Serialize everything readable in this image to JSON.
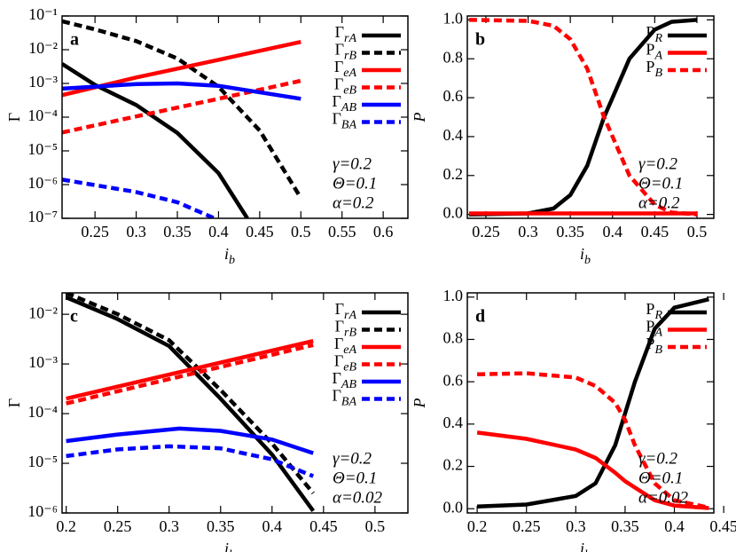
{
  "chart_data": [
    {
      "type": "line",
      "label": "a",
      "xlabel": "ib",
      "ylabel": "Γ",
      "log_y": true,
      "legend": "upper right",
      "xlim": [
        0.21,
        0.63
      ],
      "xticks": [
        0.25,
        0.3,
        0.35,
        0.4,
        0.45,
        0.5,
        0.55,
        0.6
      ],
      "ylim": [
        1e-07,
        0.1
      ],
      "yticks": [
        {
          "value": 1e-07,
          "label": "10⁻⁷"
        },
        {
          "value": 1e-06,
          "label": "10⁻⁶"
        },
        {
          "value": 1e-05,
          "label": "10⁻⁵"
        },
        {
          "value": 0.0001,
          "label": "10⁻⁴"
        },
        {
          "value": 0.001,
          "label": "10⁻³"
        },
        {
          "value": 0.01,
          "label": "10⁻²"
        },
        {
          "value": 0.1,
          "label": "10⁻¹"
        }
      ],
      "annotations": [
        "γ=0.2",
        "Θ=0.1",
        "α=0.2"
      ],
      "series": [
        {
          "name": "ΓrA",
          "color": "#000000",
          "dashed": false,
          "x": [
            0.21,
            0.25,
            0.3,
            0.35,
            0.4,
            0.435
          ],
          "values": [
            0.0038,
            0.0009,
            0.00023,
            3.4e-05,
            2.2e-06,
            1e-07
          ]
        },
        {
          "name": "ΓrB",
          "color": "#000000",
          "dashed": true,
          "x": [
            0.21,
            0.25,
            0.3,
            0.35,
            0.4,
            0.45,
            0.5
          ],
          "values": [
            0.07,
            0.04,
            0.018,
            0.0055,
            0.0008,
            4e-05,
            4e-07
          ]
        },
        {
          "name": "ΓeA",
          "color": "#ff0000",
          "dashed": false,
          "x": [
            0.21,
            0.3,
            0.4,
            0.5
          ],
          "values": [
            0.00045,
            0.0015,
            0.005,
            0.017
          ]
        },
        {
          "name": "ΓeB",
          "color": "#ff0000",
          "dashed": true,
          "x": [
            0.21,
            0.3,
            0.4,
            0.5
          ],
          "values": [
            3.5e-05,
            0.000105,
            0.00035,
            0.0012
          ]
        },
        {
          "name": "ΓAB",
          "color": "#0000ff",
          "dashed": false,
          "x": [
            0.21,
            0.3,
            0.35,
            0.4,
            0.5
          ],
          "values": [
            0.0007,
            0.00095,
            0.001,
            0.00085,
            0.00035
          ]
        },
        {
          "name": "ΓBA",
          "color": "#0000ff",
          "dashed": true,
          "x": [
            0.21,
            0.3,
            0.35,
            0.395
          ],
          "values": [
            1.4e-06,
            6e-07,
            3e-07,
            1e-07
          ]
        }
      ]
    },
    {
      "type": "line",
      "label": "b",
      "xlabel": "ib",
      "ylabel": "P",
      "log_y": false,
      "legend": "upper right",
      "xlim": [
        0.228,
        0.52
      ],
      "xticks": [
        0.25,
        0.3,
        0.35,
        0.4,
        0.45,
        0.5
      ],
      "ylim": [
        -0.02,
        1.02
      ],
      "yticks": [
        {
          "value": 0,
          "label": "0.0"
        },
        {
          "value": 0.2,
          "label": "0.2"
        },
        {
          "value": 0.4,
          "label": "0.4"
        },
        {
          "value": 0.6,
          "label": "0.6"
        },
        {
          "value": 0.8,
          "label": "0.8"
        },
        {
          "value": 1,
          "label": "1.0"
        }
      ],
      "annotations": [
        "γ=0.2",
        "Θ=0.1",
        "α=0.2"
      ],
      "series": [
        {
          "name": "PR",
          "color": "#000000",
          "dashed": false,
          "x": [
            0.23,
            0.3,
            0.33,
            0.35,
            0.37,
            0.39,
            0.4,
            0.42,
            0.45,
            0.47,
            0.5
          ],
          "values": [
            0,
            0.005,
            0.03,
            0.1,
            0.25,
            0.5,
            0.6,
            0.8,
            0.95,
            0.99,
            1.0
          ]
        },
        {
          "name": "PA",
          "color": "#ff0000",
          "dashed": false,
          "x": [
            0.23,
            0.5
          ],
          "values": [
            0.005,
            0.005
          ]
        },
        {
          "name": "PB",
          "color": "#ff0000",
          "dashed": true,
          "x": [
            0.23,
            0.3,
            0.33,
            0.35,
            0.37,
            0.39,
            0.4,
            0.42,
            0.45,
            0.47,
            0.5
          ],
          "values": [
            1,
            0.995,
            0.97,
            0.9,
            0.75,
            0.5,
            0.4,
            0.2,
            0.05,
            0.01,
            0
          ]
        }
      ]
    },
    {
      "type": "line",
      "label": "c",
      "xlabel": "ib",
      "ylabel": "Γ",
      "log_y": true,
      "legend": "upper right",
      "xlim": [
        0.196,
        0.532
      ],
      "xticks": [
        0.2,
        0.25,
        0.3,
        0.35,
        0.4,
        0.45,
        0.5
      ],
      "ylim": [
        1e-06,
        0.027
      ],
      "yticks": [
        {
          "value": 1e-06,
          "label": "10⁻⁶"
        },
        {
          "value": 1e-05,
          "label": "10⁻⁵"
        },
        {
          "value": 0.0001,
          "label": "10⁻⁴"
        },
        {
          "value": 0.001,
          "label": "10⁻³"
        },
        {
          "value": 0.01,
          "label": "10⁻²"
        }
      ],
      "annotations": [
        "γ=0.2",
        "Θ=0.1",
        "α=0.02"
      ],
      "series": [
        {
          "name": "ΓrA",
          "color": "#000000",
          "dashed": false,
          "x": [
            0.2,
            0.25,
            0.3,
            0.35,
            0.4,
            0.44
          ],
          "values": [
            0.022,
            0.008,
            0.0023,
            0.0002,
            1.5e-05,
            1.1e-06
          ]
        },
        {
          "name": "ΓrB",
          "color": "#000000",
          "dashed": true,
          "x": [
            0.2,
            0.25,
            0.3,
            0.35,
            0.4,
            0.44
          ],
          "values": [
            0.027,
            0.01,
            0.003,
            0.0003,
            2.5e-05,
            2.5e-06
          ]
        },
        {
          "name": "ΓeA",
          "color": "#ff0000",
          "dashed": false,
          "x": [
            0.2,
            0.44
          ],
          "values": [
            0.0002,
            0.0029
          ]
        },
        {
          "name": "ΓeB",
          "color": "#ff0000",
          "dashed": true,
          "x": [
            0.2,
            0.44
          ],
          "values": [
            0.00016,
            0.0024
          ]
        },
        {
          "name": "ΓAB",
          "color": "#0000ff",
          "dashed": false,
          "x": [
            0.2,
            0.25,
            0.31,
            0.35,
            0.4,
            0.44
          ],
          "values": [
            2.8e-05,
            3.8e-05,
            5e-05,
            4.5e-05,
            3e-05,
            1.6e-05
          ]
        },
        {
          "name": "ΓBA",
          "color": "#0000ff",
          "dashed": true,
          "x": [
            0.2,
            0.25,
            0.3,
            0.35,
            0.4,
            0.44
          ],
          "values": [
            1.4e-05,
            1.9e-05,
            2.2e-05,
            2e-05,
            1.2e-05,
            5.5e-06
          ]
        }
      ]
    },
    {
      "type": "line",
      "label": "d",
      "xlabel": "ib",
      "ylabel": "P",
      "log_y": false,
      "legend": "upper right",
      "xlim": [
        0.19,
        0.44
      ],
      "xticks": [
        0.2,
        0.25,
        0.3,
        0.35,
        0.4,
        0.45
      ],
      "ylim": [
        -0.02,
        1.02
      ],
      "yticks": [
        {
          "value": 0,
          "label": "0.0"
        },
        {
          "value": 0.2,
          "label": "0.2"
        },
        {
          "value": 0.4,
          "label": "0.4"
        },
        {
          "value": 0.6,
          "label": "0.6"
        },
        {
          "value": 0.8,
          "label": "0.8"
        },
        {
          "value": 1,
          "label": "1.0"
        }
      ],
      "annotations": [
        "γ=0.2",
        "Θ=0.1",
        "α=0.02"
      ],
      "series": [
        {
          "name": "PR",
          "color": "#000000",
          "dashed": false,
          "x": [
            0.2,
            0.25,
            0.3,
            0.32,
            0.34,
            0.35,
            0.36,
            0.38,
            0.4,
            0.435
          ],
          "values": [
            0.01,
            0.02,
            0.06,
            0.12,
            0.3,
            0.45,
            0.6,
            0.85,
            0.95,
            0.99
          ]
        },
        {
          "name": "PA",
          "color": "#ff0000",
          "dashed": false,
          "x": [
            0.2,
            0.25,
            0.3,
            0.32,
            0.34,
            0.35,
            0.36,
            0.38,
            0.4,
            0.435
          ],
          "values": [
            0.36,
            0.33,
            0.28,
            0.24,
            0.17,
            0.13,
            0.1,
            0.04,
            0.015,
            0.003
          ]
        },
        {
          "name": "PB",
          "color": "#ff0000",
          "dashed": true,
          "x": [
            0.2,
            0.25,
            0.3,
            0.32,
            0.34,
            0.35,
            0.36,
            0.38,
            0.4,
            0.435
          ],
          "values": [
            0.635,
            0.64,
            0.62,
            0.58,
            0.5,
            0.42,
            0.3,
            0.12,
            0.04,
            0.005
          ]
        }
      ]
    }
  ]
}
